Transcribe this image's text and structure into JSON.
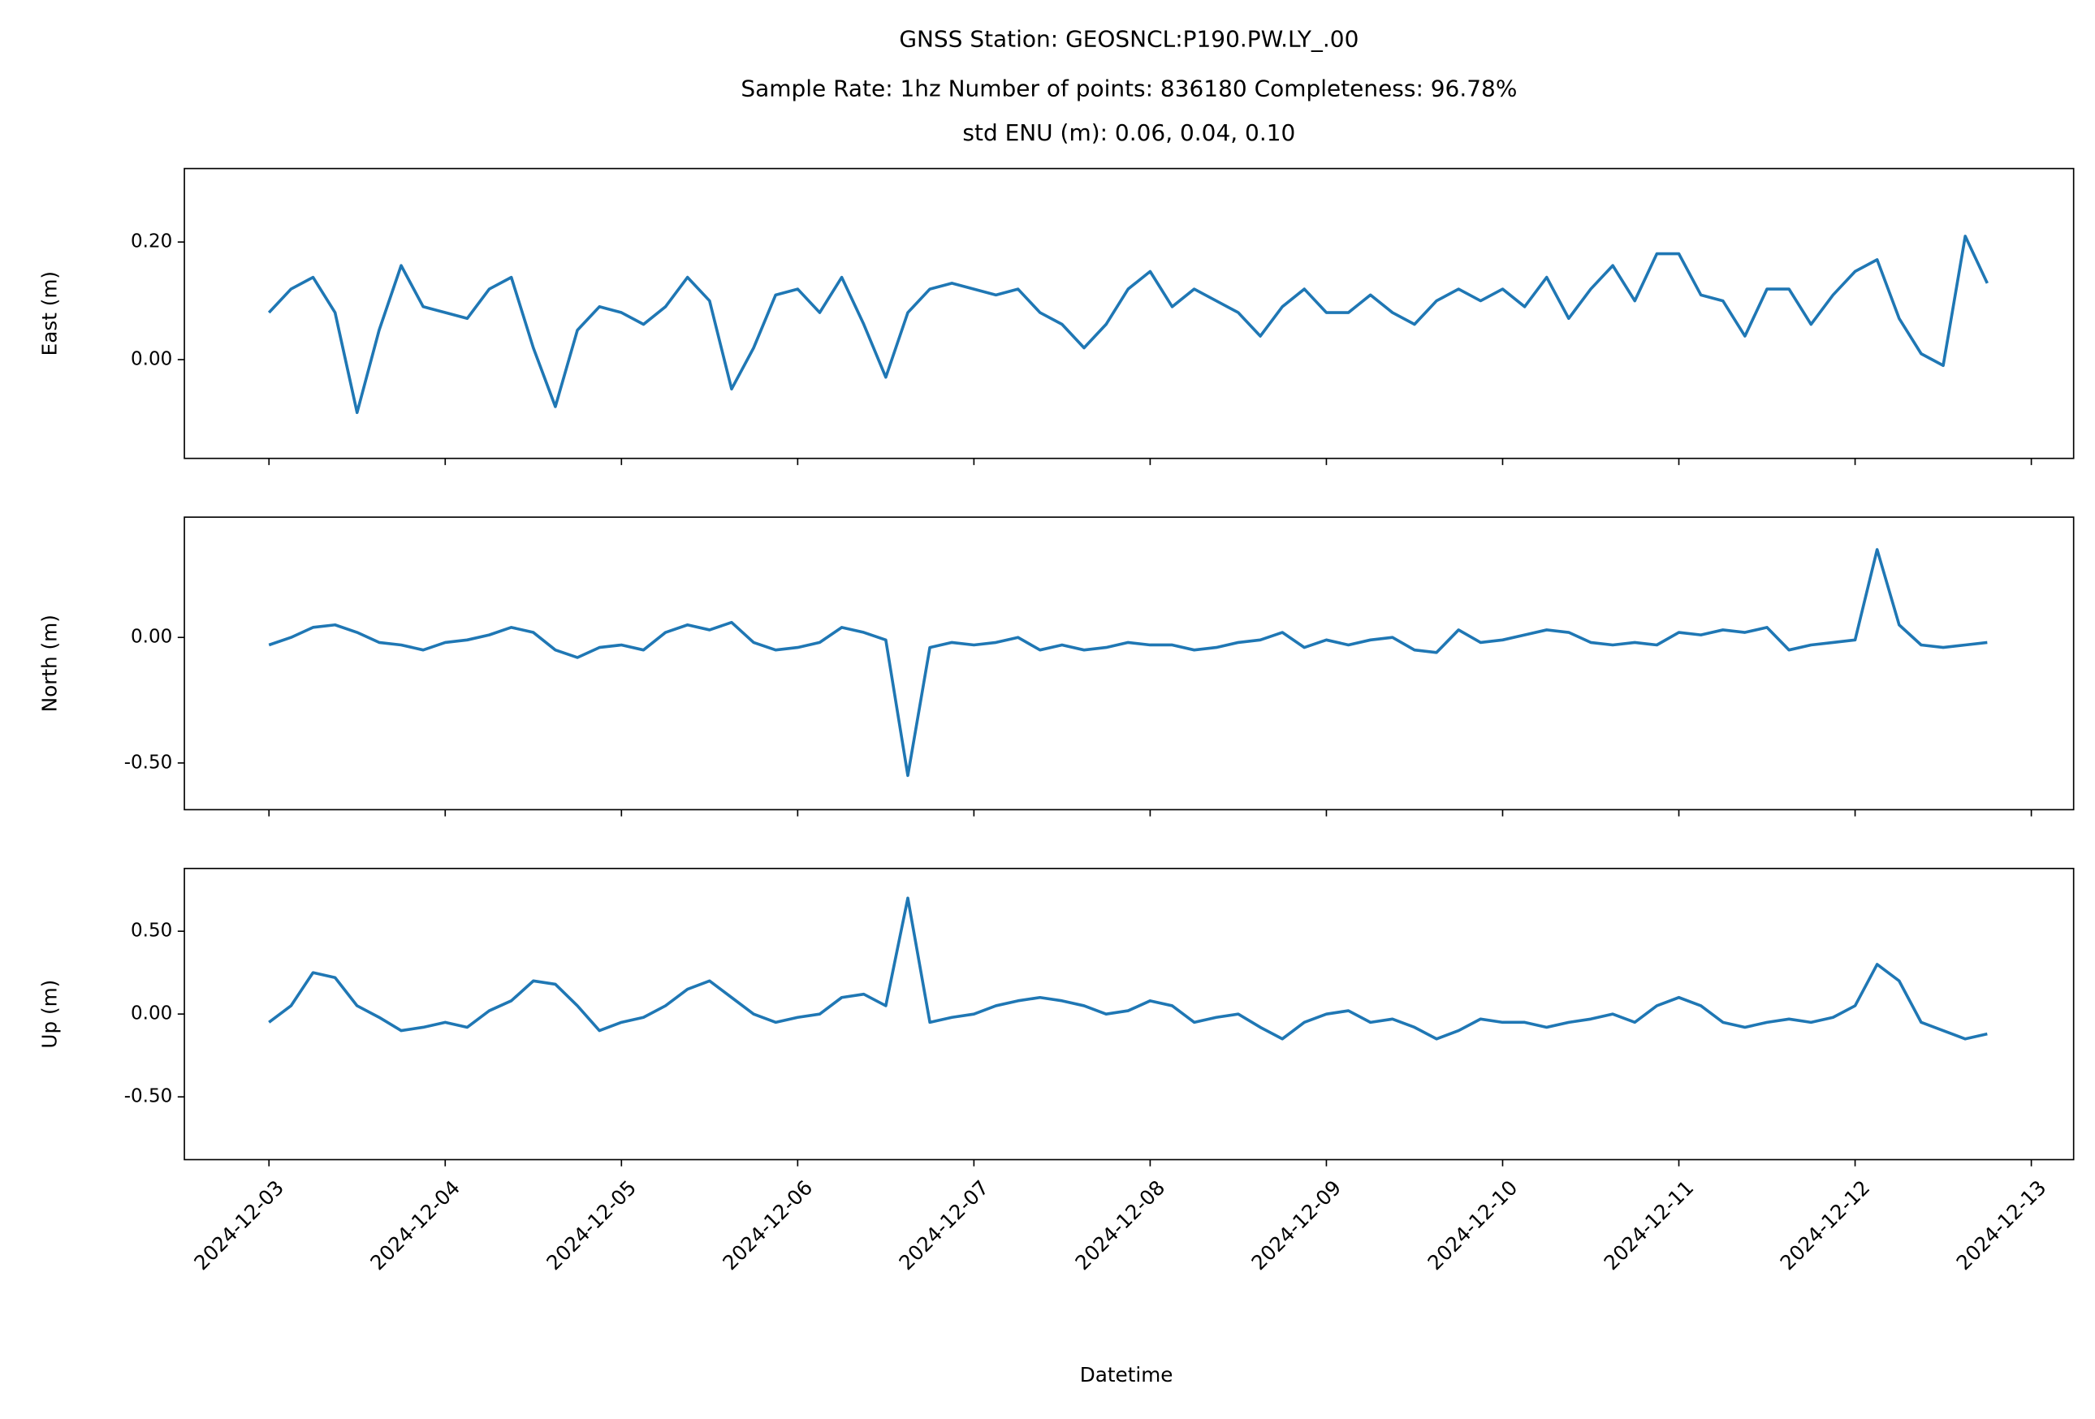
{
  "title": [
    "GNSS Station: GEOSNCL:P190.PW.LY_.00",
    "Sample Rate: 1hz   Number of points: 836180    Completeness:  96.78%",
    "std ENU (m):  0.06, 0.04, 0.10"
  ],
  "chart_data": [
    {
      "type": "line",
      "ylabel": "East (m)",
      "color": "#1f77b4",
      "ylim": [
        -0.168,
        0.325
      ],
      "yticks": [
        {
          "value": 0,
          "label": "0.00"
        },
        {
          "value": 0.2,
          "label": "0.20"
        }
      ],
      "values": [
        0.08,
        0.12,
        0.14,
        0.08,
        -0.09,
        0.05,
        0.16,
        0.09,
        0.08,
        0.07,
        0.12,
        0.14,
        0.02,
        -0.08,
        0.05,
        0.09,
        0.08,
        0.06,
        0.09,
        0.14,
        0.1,
        -0.05,
        0.02,
        0.11,
        0.12,
        0.08,
        0.14,
        0.06,
        -0.03,
        0.08,
        0.12,
        0.13,
        0.12,
        0.11,
        0.12,
        0.08,
        0.06,
        0.02,
        0.06,
        0.12,
        0.15,
        0.09,
        0.12,
        0.1,
        0.08,
        0.04,
        0.09,
        0.12,
        0.08,
        0.08,
        0.11,
        0.08,
        0.06,
        0.1,
        0.12,
        0.1,
        0.12,
        0.09,
        0.14,
        0.07,
        0.12,
        0.16,
        0.1,
        0.18,
        0.18,
        0.11,
        0.1,
        0.04,
        0.12,
        0.12,
        0.06,
        0.11,
        0.15,
        0.17,
        0.07,
        0.01,
        -0.01,
        0.21,
        0.13
      ]
    },
    {
      "type": "line",
      "ylabel": "North (m)",
      "color": "#1f77b4",
      "ylim": [
        -0.686,
        0.479
      ],
      "yticks": [
        {
          "value": -0.5,
          "label": "-0.50"
        },
        {
          "value": 0,
          "label": "0.00"
        }
      ],
      "values": [
        -0.03,
        0.0,
        0.04,
        0.05,
        0.02,
        -0.02,
        -0.03,
        -0.05,
        -0.02,
        -0.01,
        0.01,
        0.04,
        0.02,
        -0.05,
        -0.08,
        -0.04,
        -0.03,
        -0.05,
        0.02,
        0.05,
        0.03,
        0.06,
        -0.02,
        -0.05,
        -0.04,
        -0.02,
        0.04,
        0.02,
        -0.01,
        -0.55,
        -0.04,
        -0.02,
        -0.03,
        -0.02,
        0.0,
        -0.05,
        -0.03,
        -0.05,
        -0.04,
        -0.02,
        -0.03,
        -0.03,
        -0.05,
        -0.04,
        -0.02,
        -0.01,
        0.02,
        -0.04,
        -0.01,
        -0.03,
        -0.01,
        0.0,
        -0.05,
        -0.06,
        0.03,
        -0.02,
        -0.01,
        0.01,
        0.03,
        0.02,
        -0.02,
        -0.03,
        -0.02,
        -0.03,
        0.02,
        0.01,
        0.03,
        0.02,
        0.04,
        -0.05,
        -0.03,
        -0.02,
        -0.01,
        0.35,
        0.05,
        -0.03,
        -0.04,
        -0.03,
        -0.02
      ]
    },
    {
      "type": "line",
      "ylabel": "Up (m)",
      "xlabel": "Datetime",
      "color": "#1f77b4",
      "ylim": [
        -0.879,
        0.879
      ],
      "yticks": [
        {
          "value": -0.5,
          "label": "-0.50"
        },
        {
          "value": 0,
          "label": "0.00"
        },
        {
          "value": 0.5,
          "label": "0.50"
        }
      ],
      "xlim": [
        -0.48,
        10.24
      ],
      "xticks": [
        {
          "value": 0,
          "label": "2024-12-03"
        },
        {
          "value": 1,
          "label": "2024-12-04"
        },
        {
          "value": 2,
          "label": "2024-12-05"
        },
        {
          "value": 3,
          "label": "2024-12-06"
        },
        {
          "value": 4,
          "label": "2024-12-07"
        },
        {
          "value": 5,
          "label": "2024-12-08"
        },
        {
          "value": 6,
          "label": "2024-12-09"
        },
        {
          "value": 7,
          "label": "2024-12-10"
        },
        {
          "value": 8,
          "label": "2024-12-11"
        },
        {
          "value": 9,
          "label": "2024-12-12"
        },
        {
          "value": 10,
          "label": "2024-12-13"
        }
      ],
      "x": [
        0,
        0.125,
        0.25,
        0.375,
        0.5,
        0.625,
        0.75,
        0.875,
        1,
        1.125,
        1.25,
        1.375,
        1.5,
        1.625,
        1.75,
        1.875,
        2,
        2.125,
        2.25,
        2.375,
        2.5,
        2.625,
        2.75,
        2.875,
        3,
        3.125,
        3.25,
        3.375,
        3.5,
        3.625,
        3.75,
        3.875,
        4,
        4.125,
        4.25,
        4.375,
        4.5,
        4.625,
        4.75,
        4.875,
        5,
        5.125,
        5.25,
        5.375,
        5.5,
        5.625,
        5.75,
        5.875,
        6,
        6.125,
        6.25,
        6.375,
        6.5,
        6.625,
        6.75,
        6.875,
        7,
        7.125,
        7.25,
        7.375,
        7.5,
        7.625,
        7.75,
        7.875,
        8,
        8.125,
        8.25,
        8.375,
        8.5,
        8.625,
        8.75,
        8.875,
        9,
        9.125,
        9.25,
        9.375,
        9.5,
        9.625,
        9.75
      ],
      "values": [
        -0.05,
        0.05,
        0.25,
        0.22,
        0.05,
        -0.02,
        -0.1,
        -0.08,
        -0.05,
        -0.08,
        0.02,
        0.08,
        0.2,
        0.18,
        0.05,
        -0.1,
        -0.05,
        -0.02,
        0.05,
        0.15,
        0.2,
        0.1,
        0.0,
        -0.05,
        -0.02,
        0.0,
        0.1,
        0.12,
        0.05,
        0.7,
        -0.05,
        -0.02,
        0.0,
        0.05,
        0.08,
        0.1,
        0.08,
        0.05,
        0.0,
        0.02,
        0.08,
        0.05,
        -0.05,
        -0.02,
        0.0,
        -0.08,
        -0.15,
        -0.05,
        0.0,
        0.02,
        -0.05,
        -0.03,
        -0.08,
        -0.15,
        -0.1,
        -0.03,
        -0.05,
        -0.05,
        -0.08,
        -0.05,
        -0.03,
        0.0,
        -0.05,
        0.05,
        0.1,
        0.05,
        -0.05,
        -0.08,
        -0.05,
        -0.03,
        -0.05,
        -0.02,
        0.05,
        0.3,
        0.2,
        -0.05,
        -0.1,
        -0.15,
        -0.12
      ]
    }
  ]
}
